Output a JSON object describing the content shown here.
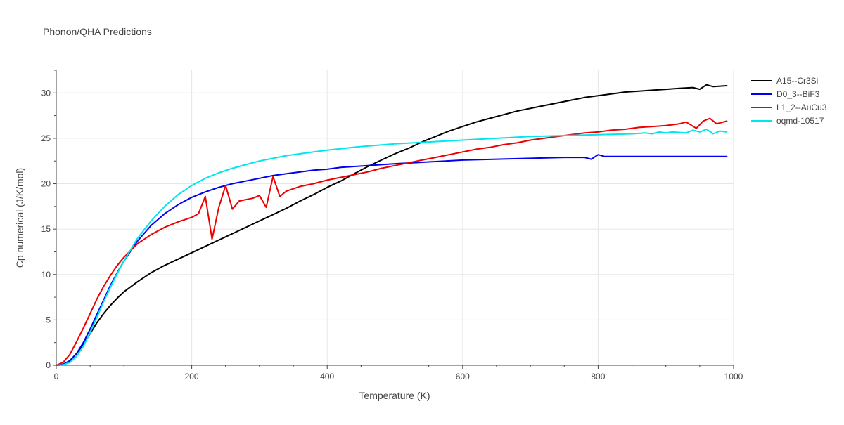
{
  "chart_data": {
    "type": "line",
    "title": "Phonon/QHA Predictions",
    "xlabel": "Temperature (K)",
    "ylabel": "Cp numerical (J/K/mol)",
    "xlim": [
      0,
      1000
    ],
    "ylim": [
      0,
      32.5
    ],
    "xticks": [
      0,
      200,
      400,
      600,
      800,
      1000
    ],
    "yticks": [
      0,
      5,
      10,
      15,
      20,
      25,
      30
    ],
    "grid": true,
    "legend": "top-right",
    "series": [
      {
        "name": "A15--Cr3Si",
        "color": "#000000",
        "points": [
          [
            0,
            0
          ],
          [
            10,
            0.1
          ],
          [
            20,
            0.5
          ],
          [
            30,
            1.3
          ],
          [
            40,
            2.3
          ],
          [
            50,
            3.5
          ],
          [
            60,
            4.7
          ],
          [
            70,
            5.7
          ],
          [
            80,
            6.6
          ],
          [
            90,
            7.4
          ],
          [
            100,
            8.1
          ],
          [
            120,
            9.2
          ],
          [
            140,
            10.2
          ],
          [
            160,
            11.0
          ],
          [
            180,
            11.7
          ],
          [
            200,
            12.4
          ],
          [
            220,
            13.1
          ],
          [
            240,
            13.8
          ],
          [
            260,
            14.5
          ],
          [
            280,
            15.2
          ],
          [
            300,
            15.9
          ],
          [
            320,
            16.6
          ],
          [
            340,
            17.3
          ],
          [
            360,
            18.1
          ],
          [
            380,
            18.8
          ],
          [
            400,
            19.6
          ],
          [
            420,
            20.3
          ],
          [
            440,
            21.1
          ],
          [
            460,
            21.9
          ],
          [
            480,
            22.6
          ],
          [
            500,
            23.3
          ],
          [
            520,
            23.9
          ],
          [
            540,
            24.6
          ],
          [
            560,
            25.2
          ],
          [
            580,
            25.8
          ],
          [
            600,
            26.3
          ],
          [
            620,
            26.8
          ],
          [
            640,
            27.2
          ],
          [
            660,
            27.6
          ],
          [
            680,
            28.0
          ],
          [
            700,
            28.3
          ],
          [
            720,
            28.6
          ],
          [
            740,
            28.9
          ],
          [
            760,
            29.2
          ],
          [
            780,
            29.5
          ],
          [
            800,
            29.7
          ],
          [
            820,
            29.9
          ],
          [
            840,
            30.1
          ],
          [
            860,
            30.2
          ],
          [
            880,
            30.3
          ],
          [
            900,
            30.4
          ],
          [
            920,
            30.5
          ],
          [
            940,
            30.6
          ],
          [
            950,
            30.4
          ],
          [
            960,
            30.9
          ],
          [
            970,
            30.7
          ],
          [
            990,
            30.8
          ]
        ]
      },
      {
        "name": "D0_3--BiF3",
        "color": "#0000ee",
        "points": [
          [
            0,
            0
          ],
          [
            10,
            0.1
          ],
          [
            20,
            0.5
          ],
          [
            30,
            1.3
          ],
          [
            40,
            2.5
          ],
          [
            50,
            4.0
          ],
          [
            60,
            5.6
          ],
          [
            70,
            7.2
          ],
          [
            80,
            8.8
          ],
          [
            90,
            10.2
          ],
          [
            100,
            11.5
          ],
          [
            120,
            13.7
          ],
          [
            140,
            15.4
          ],
          [
            160,
            16.7
          ],
          [
            180,
            17.7
          ],
          [
            200,
            18.5
          ],
          [
            220,
            19.1
          ],
          [
            240,
            19.6
          ],
          [
            260,
            20.0
          ],
          [
            280,
            20.3
          ],
          [
            300,
            20.6
          ],
          [
            320,
            20.9
          ],
          [
            340,
            21.1
          ],
          [
            360,
            21.3
          ],
          [
            380,
            21.5
          ],
          [
            400,
            21.6
          ],
          [
            420,
            21.8
          ],
          [
            440,
            21.9
          ],
          [
            460,
            22.0
          ],
          [
            480,
            22.1
          ],
          [
            500,
            22.2
          ],
          [
            550,
            22.4
          ],
          [
            600,
            22.6
          ],
          [
            650,
            22.7
          ],
          [
            700,
            22.8
          ],
          [
            750,
            22.9
          ],
          [
            780,
            22.9
          ],
          [
            790,
            22.7
          ],
          [
            800,
            23.2
          ],
          [
            810,
            23.0
          ],
          [
            850,
            23.0
          ],
          [
            900,
            23.0
          ],
          [
            950,
            23.0
          ],
          [
            990,
            23.0
          ]
        ]
      },
      {
        "name": "L1_2--AuCu3",
        "color": "#ee0000",
        "points": [
          [
            0,
            0
          ],
          [
            10,
            0.3
          ],
          [
            20,
            1.2
          ],
          [
            30,
            2.6
          ],
          [
            40,
            4.1
          ],
          [
            50,
            5.7
          ],
          [
            60,
            7.3
          ],
          [
            70,
            8.7
          ],
          [
            80,
            9.9
          ],
          [
            90,
            11.0
          ],
          [
            100,
            11.9
          ],
          [
            120,
            13.4
          ],
          [
            140,
            14.4
          ],
          [
            160,
            15.2
          ],
          [
            180,
            15.8
          ],
          [
            200,
            16.3
          ],
          [
            210,
            16.7
          ],
          [
            220,
            18.6
          ],
          [
            230,
            13.9
          ],
          [
            240,
            17.4
          ],
          [
            250,
            19.8
          ],
          [
            260,
            17.2
          ],
          [
            270,
            18.1
          ],
          [
            290,
            18.4
          ],
          [
            300,
            18.7
          ],
          [
            310,
            17.4
          ],
          [
            320,
            20.8
          ],
          [
            330,
            18.6
          ],
          [
            340,
            19.2
          ],
          [
            360,
            19.7
          ],
          [
            380,
            20.0
          ],
          [
            400,
            20.4
          ],
          [
            420,
            20.7
          ],
          [
            440,
            21.0
          ],
          [
            460,
            21.3
          ],
          [
            480,
            21.7
          ],
          [
            500,
            22.0
          ],
          [
            520,
            22.3
          ],
          [
            540,
            22.6
          ],
          [
            560,
            22.9
          ],
          [
            580,
            23.2
          ],
          [
            600,
            23.5
          ],
          [
            620,
            23.8
          ],
          [
            640,
            24.0
          ],
          [
            660,
            24.3
          ],
          [
            680,
            24.5
          ],
          [
            700,
            24.8
          ],
          [
            720,
            25.0
          ],
          [
            740,
            25.2
          ],
          [
            760,
            25.4
          ],
          [
            780,
            25.6
          ],
          [
            800,
            25.7
          ],
          [
            820,
            25.9
          ],
          [
            840,
            26.0
          ],
          [
            860,
            26.2
          ],
          [
            880,
            26.3
          ],
          [
            900,
            26.4
          ],
          [
            920,
            26.6
          ],
          [
            930,
            26.8
          ],
          [
            945,
            26.1
          ],
          [
            955,
            26.9
          ],
          [
            965,
            27.2
          ],
          [
            975,
            26.6
          ],
          [
            990,
            26.9
          ]
        ]
      },
      {
        "name": "oqmd-10517",
        "color": "#00e5ee",
        "points": [
          [
            0,
            0
          ],
          [
            10,
            0.05
          ],
          [
            20,
            0.3
          ],
          [
            30,
            1.0
          ],
          [
            40,
            2.1
          ],
          [
            50,
            3.6
          ],
          [
            60,
            5.3
          ],
          [
            70,
            7.0
          ],
          [
            80,
            8.6
          ],
          [
            90,
            10.1
          ],
          [
            100,
            11.5
          ],
          [
            120,
            14.0
          ],
          [
            140,
            15.9
          ],
          [
            160,
            17.5
          ],
          [
            180,
            18.8
          ],
          [
            200,
            19.8
          ],
          [
            220,
            20.6
          ],
          [
            240,
            21.2
          ],
          [
            260,
            21.7
          ],
          [
            280,
            22.1
          ],
          [
            300,
            22.5
          ],
          [
            320,
            22.8
          ],
          [
            340,
            23.1
          ],
          [
            360,
            23.3
          ],
          [
            380,
            23.5
          ],
          [
            400,
            23.7
          ],
          [
            450,
            24.1
          ],
          [
            500,
            24.4
          ],
          [
            550,
            24.6
          ],
          [
            600,
            24.8
          ],
          [
            650,
            25.0
          ],
          [
            700,
            25.2
          ],
          [
            750,
            25.3
          ],
          [
            800,
            25.4
          ],
          [
            850,
            25.5
          ],
          [
            870,
            25.6
          ],
          [
            880,
            25.5
          ],
          [
            890,
            25.7
          ],
          [
            900,
            25.6
          ],
          [
            910,
            25.7
          ],
          [
            930,
            25.6
          ],
          [
            940,
            25.9
          ],
          [
            950,
            25.7
          ],
          [
            960,
            26.0
          ],
          [
            970,
            25.5
          ],
          [
            980,
            25.8
          ],
          [
            990,
            25.7
          ]
        ]
      }
    ]
  }
}
